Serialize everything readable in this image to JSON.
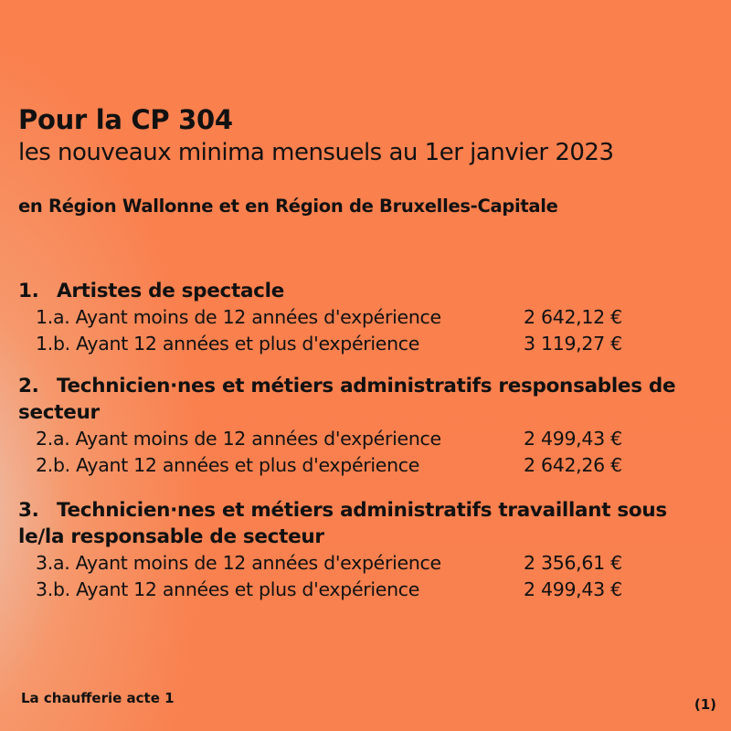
{
  "header": {
    "title": "Pour la CP 304",
    "subtitle": "les nouveaux minima mensuels au 1er janvier 2023",
    "region": "en Région Wallonne et en Région de Bruxelles-Capitale"
  },
  "sections": [
    {
      "number": "1.",
      "heading": "Artistes de spectacle",
      "rows": [
        {
          "label": "1.a. Ayant moins de 12 années d'expérience",
          "amount": "2 642,12 €"
        },
        {
          "label": "1.b. Ayant 12 années et plus d'expérience",
          "amount": "3 119,27 €"
        }
      ]
    },
    {
      "number": "2.",
      "heading": "Technicien·nes et métiers administratifs responsables de secteur",
      "rows": [
        {
          "label": "2.a. Ayant moins de 12 années d'expérience",
          "amount": "2 499,43 €"
        },
        {
          "label": "2.b. Ayant 12 années et plus d'expérience",
          "amount": "2 642,26 €"
        }
      ]
    },
    {
      "number": "3.",
      "heading": "Technicien·nes et métiers administratifs travaillant sous le/la responsable de secteur",
      "rows": [
        {
          "label": "3.a. Ayant moins de 12 années d'expérience",
          "amount": "2 356,61 €"
        },
        {
          "label": "3.b. Ayant 12 années et plus d'expérience",
          "amount": "2 499,43 €"
        }
      ]
    }
  ],
  "footer": {
    "source": "La chaufferie acte 1",
    "page": "(1)"
  },
  "colors": {
    "background": "#F9814F",
    "text": "#111111"
  }
}
